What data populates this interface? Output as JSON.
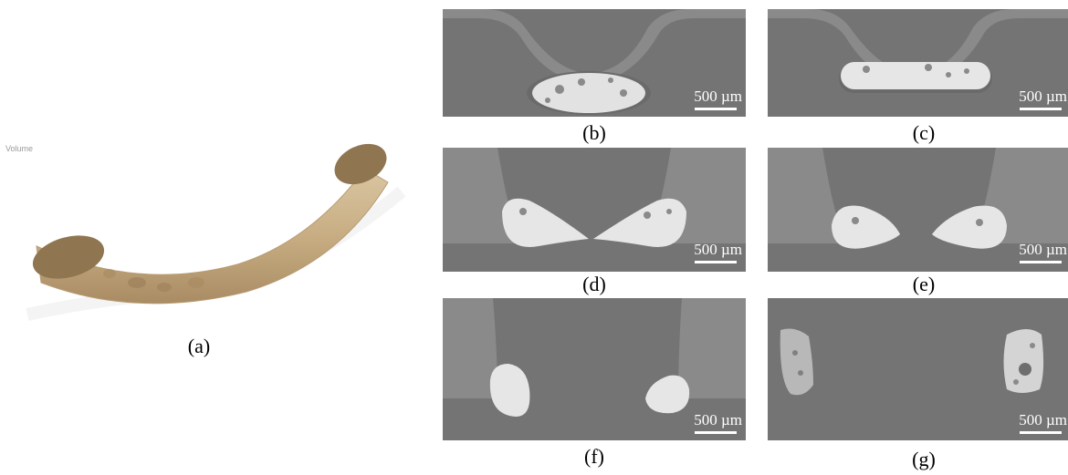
{
  "figure": {
    "panel_a": {
      "view_label": "Volume",
      "caption": "(a)"
    },
    "panels": [
      {
        "id": "b",
        "caption": "(b)",
        "scale_label": "500 µm"
      },
      {
        "id": "c",
        "caption": "(c)",
        "scale_label": "500 µm"
      },
      {
        "id": "d",
        "caption": "(d)",
        "scale_label": "500 µm"
      },
      {
        "id": "e",
        "caption": "(e)",
        "scale_label": "500 µm"
      },
      {
        "id": "f",
        "caption": "(f)",
        "scale_label": "500 µm"
      },
      {
        "id": "g",
        "caption": "(g)",
        "scale_label": "500 µm"
      }
    ]
  }
}
